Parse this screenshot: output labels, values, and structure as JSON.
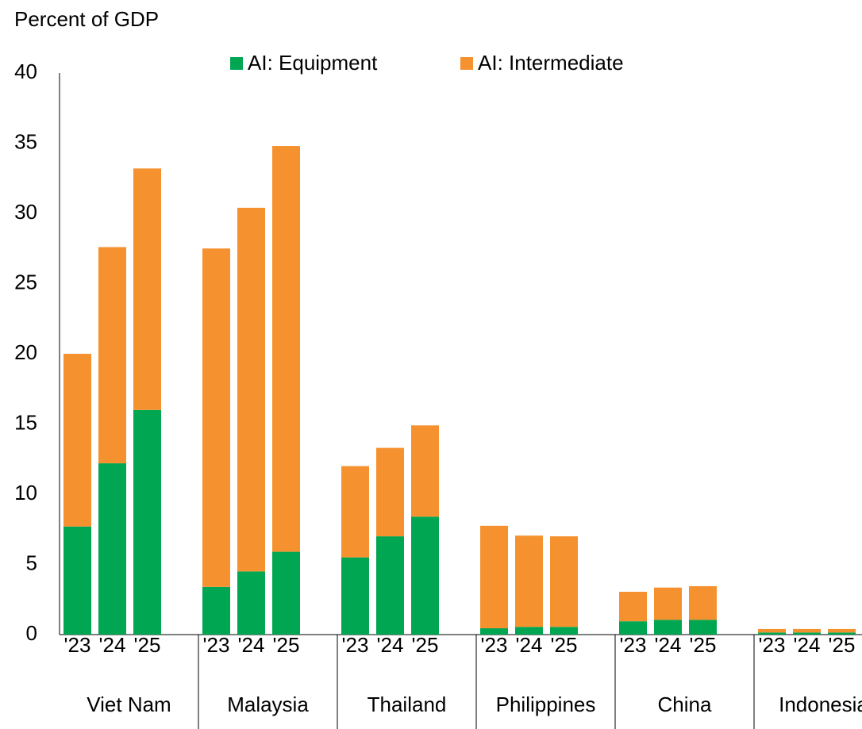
{
  "chart_data": {
    "type": "stacked_bar",
    "ylabel": "Percent of GDP",
    "groups": [
      "Viet Nam",
      "Malaysia",
      "Thailand",
      "Philippines",
      "China",
      "Indonesia"
    ],
    "categories": [
      "'23",
      "'24",
      "'25",
      "'23",
      "'24",
      "'25",
      "'23",
      "'24",
      "'25",
      "'23",
      "'24",
      "'25",
      "'23",
      "'24",
      "'25",
      "'23",
      "'24",
      "'25"
    ],
    "series": [
      {
        "name": "AI: Equipment",
        "color": "#00a651",
        "values": [
          7.7,
          12.2,
          16.0,
          3.4,
          4.5,
          5.9,
          5.5,
          7.0,
          8.4,
          0.45,
          0.55,
          0.55,
          0.95,
          1.05,
          1.05,
          0.15,
          0.15,
          0.15
        ]
      },
      {
        "name": "AI: Intermediate",
        "color": "#f5922f",
        "values": [
          12.3,
          15.4,
          17.2,
          24.1,
          25.9,
          28.9,
          6.5,
          6.3,
          6.5,
          7.3,
          6.5,
          6.45,
          2.1,
          2.3,
          2.4,
          0.25,
          0.25,
          0.25
        ]
      }
    ],
    "ylim": [
      0,
      40
    ],
    "yticks": [
      0,
      5,
      10,
      15,
      20,
      25,
      30,
      35,
      40
    ],
    "grid": false,
    "legend": "top"
  }
}
